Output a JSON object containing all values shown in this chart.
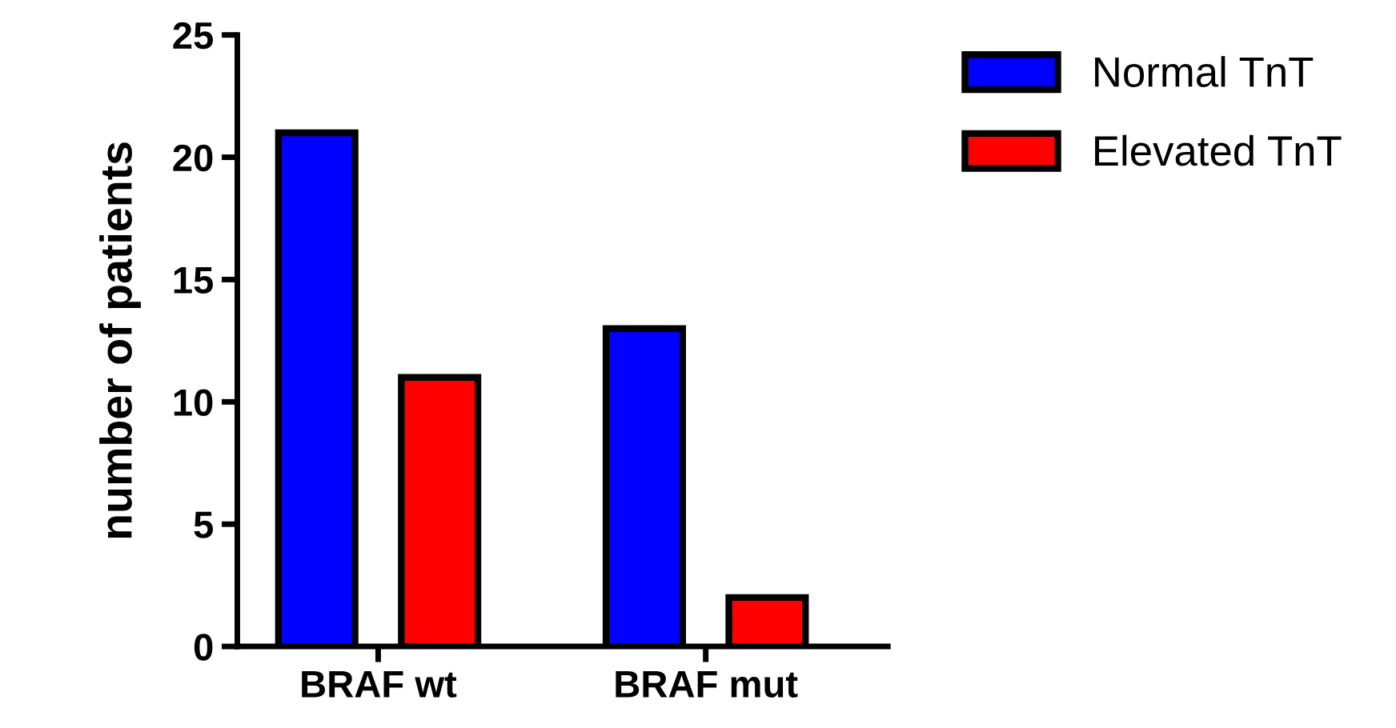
{
  "chart_data": {
    "type": "bar",
    "ylabel": "number of patients",
    "categories": [
      "BRAF wt",
      "BRAF mut"
    ],
    "series": [
      {
        "name": "Normal TnT",
        "color": "#0000ff",
        "values": [
          21,
          13
        ]
      },
      {
        "name": "Elevated TnT",
        "color": "#ff0000",
        "values": [
          11,
          2
        ]
      }
    ],
    "ylim": [
      0,
      25
    ],
    "yticks": [
      0,
      5,
      10,
      15,
      20,
      25
    ],
    "grid": false,
    "legend": "top right"
  }
}
